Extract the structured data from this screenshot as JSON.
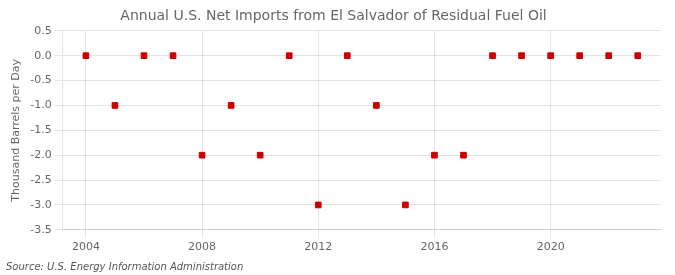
{
  "chart_data": {
    "type": "scatter",
    "title": "Annual U.S. Net Imports from El Salvador of Residual Fuel Oil",
    "ylabel": "Thousand Barrels per Day",
    "annotations": [
      "Source: U.S. Energy Information Administration"
    ],
    "x": [
      2004,
      2005,
      2006,
      2007,
      2008,
      2009,
      2010,
      2011,
      2012,
      2013,
      2014,
      2015,
      2016,
      2017,
      2018,
      2019,
      2020,
      2021,
      2022,
      2023
    ],
    "values": [
      0,
      -1,
      0,
      0,
      -2,
      -1,
      -2,
      0,
      -3,
      0,
      -1,
      -3,
      -2,
      -2,
      0,
      0,
      0,
      0,
      0,
      0
    ],
    "color": "#cc0000",
    "marker": "square",
    "xlim": [
      2003.2,
      2023.8
    ],
    "xticks": [
      2004,
      2008,
      2012,
      2016,
      2020
    ],
    "ylim": [
      -3.5,
      0.5
    ],
    "yticks": [
      0.5,
      {
        "value": 0.0,
        "label": "0.0"
      },
      -0.5,
      {
        "value": -1.0,
        "label": "-1.0"
      },
      -1.5,
      {
        "value": -2.0,
        "label": "-2.0"
      },
      -2.5,
      {
        "value": -3.0,
        "label": "-3.0"
      },
      -3.5
    ],
    "grid": true
  }
}
